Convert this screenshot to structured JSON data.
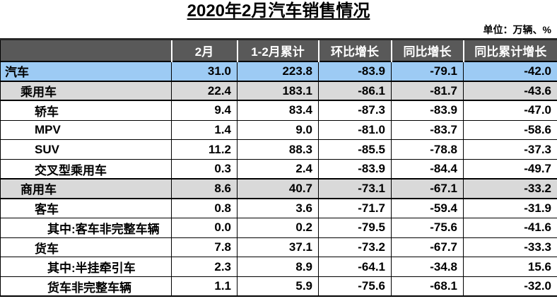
{
  "title": "2020年2月汽车销售情况",
  "unit_note": "单位：万辆、%",
  "colors": {
    "header_bg": "#595959",
    "header_text": "#ffffff",
    "highlight_row": "#9dcbf4",
    "section_row": "#d9d9d9",
    "border": "#000000"
  },
  "chart_data": {
    "type": "table",
    "title": "2020年2月汽车销售情况",
    "unit": "单位：万辆、%",
    "columns": [
      "",
      "2月",
      "1-2月累计",
      "环比增长",
      "同比增长",
      "同比累计增长"
    ],
    "rows": [
      {
        "label": "汽车",
        "indent": 0,
        "style": "highlight",
        "values": [
          "31.0",
          "223.8",
          "-83.9",
          "-79.1",
          "-42.0"
        ]
      },
      {
        "label": "乘用车",
        "indent": 1,
        "style": "section",
        "values": [
          "22.4",
          "183.1",
          "-86.1",
          "-81.7",
          "-43.6"
        ]
      },
      {
        "label": "轿车",
        "indent": 2,
        "style": "normal",
        "values": [
          "9.4",
          "83.4",
          "-87.3",
          "-83.9",
          "-47.0"
        ]
      },
      {
        "label": "MPV",
        "indent": 2,
        "style": "normal",
        "values": [
          "1.4",
          "9.0",
          "-81.0",
          "-83.7",
          "-58.6"
        ]
      },
      {
        "label": "SUV",
        "indent": 2,
        "style": "normal",
        "values": [
          "11.2",
          "88.3",
          "-85.5",
          "-78.8",
          "-37.3"
        ]
      },
      {
        "label": "交叉型乘用车",
        "indent": 2,
        "style": "normal",
        "values": [
          "0.3",
          "2.4",
          "-83.9",
          "-84.4",
          "-49.7"
        ]
      },
      {
        "label": "商用车",
        "indent": 1,
        "style": "section",
        "values": [
          "8.6",
          "40.7",
          "-73.1",
          "-67.1",
          "-33.2"
        ]
      },
      {
        "label": "客车",
        "indent": 2,
        "style": "normal",
        "values": [
          "0.8",
          "3.6",
          "-71.7",
          "-59.4",
          "-31.9"
        ]
      },
      {
        "label": "其中:客车非完整车辆",
        "indent": 3,
        "style": "normal",
        "values": [
          "0.0",
          "0.2",
          "-79.5",
          "-75.6",
          "-41.6"
        ]
      },
      {
        "label": "货车",
        "indent": 2,
        "style": "normal",
        "values": [
          "7.8",
          "37.1",
          "-73.2",
          "-67.7",
          "-33.3"
        ]
      },
      {
        "label": "其中:半挂牵引车",
        "indent": 3,
        "style": "normal",
        "values": [
          "2.3",
          "8.9",
          "-64.1",
          "-34.8",
          "15.6"
        ]
      },
      {
        "label": "货车非完整车辆",
        "indent": 3,
        "style": "normal",
        "values": [
          "1.1",
          "5.9",
          "-75.6",
          "-68.1",
          "-32.0"
        ]
      }
    ]
  }
}
